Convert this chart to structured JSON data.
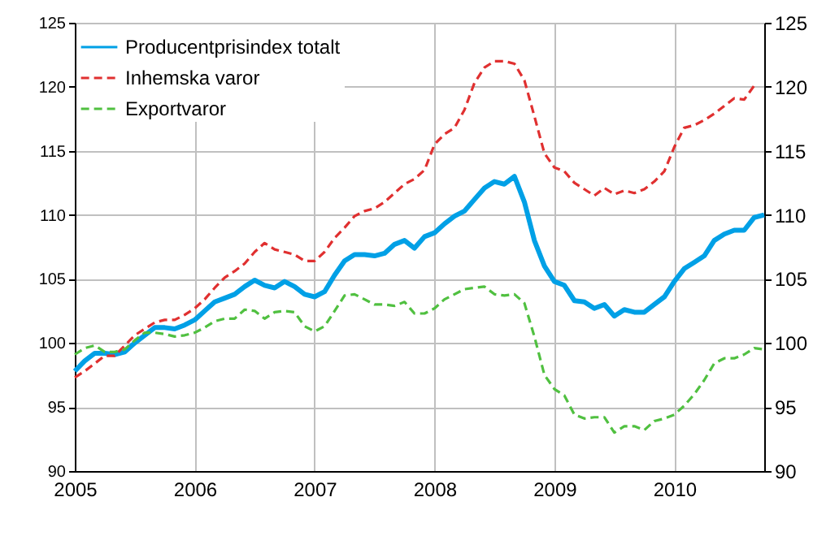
{
  "chart_data": {
    "type": "line",
    "x": [
      2005,
      2005.083,
      2005.167,
      2005.25,
      2005.333,
      2005.417,
      2005.5,
      2005.583,
      2005.667,
      2005.75,
      2005.833,
      2005.917,
      2006,
      2006.083,
      2006.167,
      2006.25,
      2006.333,
      2006.417,
      2006.5,
      2006.583,
      2006.667,
      2006.75,
      2006.833,
      2006.917,
      2007,
      2007.083,
      2007.167,
      2007.25,
      2007.333,
      2007.417,
      2007.5,
      2007.583,
      2007.667,
      2007.75,
      2007.833,
      2007.917,
      2008,
      2008.083,
      2008.167,
      2008.25,
      2008.333,
      2008.417,
      2008.5,
      2008.583,
      2008.667,
      2008.75,
      2008.833,
      2008.917,
      2009,
      2009.083,
      2009.167,
      2009.25,
      2009.333,
      2009.417,
      2009.5,
      2009.583,
      2009.667,
      2009.75,
      2009.833,
      2009.917,
      2010,
      2010.083,
      2010.167,
      2010.25,
      2010.333,
      2010.417,
      2010.5,
      2010.583,
      2010.667,
      2010.75
    ],
    "series": [
      {
        "name": "Producentprisindex totalt",
        "color": "#00a0e6",
        "line_style": "solid",
        "values": [
          97.8,
          98.6,
          99.2,
          99.2,
          99.1,
          99.3,
          100.0,
          100.6,
          101.2,
          101.2,
          101.1,
          101.4,
          101.8,
          102.5,
          103.2,
          103.5,
          103.8,
          104.4,
          104.9,
          104.5,
          104.3,
          104.8,
          104.4,
          103.8,
          103.6,
          104.0,
          105.3,
          106.4,
          106.9,
          106.9,
          106.8,
          107.0,
          107.7,
          108.0,
          107.4,
          108.3,
          108.6,
          109.3,
          109.9,
          110.3,
          111.2,
          112.1,
          112.6,
          112.4,
          113.0,
          111.0,
          108.0,
          106.0,
          104.8,
          104.5,
          103.3,
          103.2,
          102.7,
          103.0,
          102.1,
          102.6,
          102.4,
          102.4,
          103.0,
          103.6,
          104.8,
          105.8,
          106.3,
          106.8,
          108.0,
          108.5,
          108.8,
          108.8,
          109.8,
          110.0
        ]
      },
      {
        "name": "Inhemska varor",
        "color": "#e03030",
        "line_style": "dashed",
        "values": [
          97.3,
          97.8,
          98.4,
          99.0,
          99.0,
          99.8,
          100.6,
          101.1,
          101.6,
          101.8,
          101.8,
          102.2,
          102.7,
          103.4,
          104.3,
          105.1,
          105.6,
          106.2,
          107.1,
          107.8,
          107.3,
          107.1,
          106.9,
          106.4,
          106.4,
          107.1,
          108.2,
          109.0,
          109.9,
          110.3,
          110.5,
          111.0,
          111.7,
          112.4,
          112.8,
          113.5,
          115.5,
          116.3,
          116.8,
          118.2,
          120.3,
          121.5,
          122.0,
          122.0,
          121.8,
          120.5,
          117.7,
          114.8,
          113.7,
          113.4,
          112.5,
          112.0,
          111.5,
          112.1,
          111.6,
          111.9,
          111.7,
          112.0,
          112.6,
          113.4,
          115.3,
          116.8,
          117.0,
          117.4,
          117.9,
          118.5,
          119.1,
          119.0,
          120.1,
          null
        ]
      },
      {
        "name": "Exportvaror",
        "color": "#50c040",
        "line_style": "dashed",
        "values": [
          99.1,
          99.6,
          99.8,
          99.3,
          99.3,
          99.5,
          100.2,
          100.8,
          100.8,
          100.7,
          100.5,
          100.6,
          100.8,
          101.2,
          101.7,
          101.9,
          101.9,
          102.6,
          102.5,
          101.9,
          102.4,
          102.5,
          102.4,
          101.3,
          100.9,
          101.3,
          102.5,
          103.7,
          103.8,
          103.4,
          103.0,
          103.0,
          102.9,
          103.2,
          102.3,
          102.3,
          102.7,
          103.4,
          103.8,
          104.2,
          104.3,
          104.4,
          103.8,
          103.7,
          103.8,
          103.1,
          100.5,
          97.5,
          96.4,
          95.9,
          94.4,
          94.1,
          94.2,
          94.2,
          93.0,
          93.5,
          93.5,
          93.2,
          93.9,
          94.1,
          94.4,
          95.1,
          96.0,
          97.1,
          98.4,
          98.8,
          98.8,
          99.1,
          99.6,
          99.5
        ]
      }
    ],
    "xlim": [
      2005,
      2010.75
    ],
    "xticks": [
      2005,
      2006,
      2007,
      2008,
      2009,
      2010
    ],
    "ylim": [
      90,
      125
    ],
    "yticks": [
      90,
      95,
      100,
      105,
      110,
      115,
      120,
      125
    ],
    "y2lim": [
      90,
      125
    ],
    "y2ticks": [
      90,
      95,
      100,
      105,
      110,
      115,
      120,
      125
    ],
    "grid": true,
    "legend": "top left",
    "marker": "none"
  }
}
